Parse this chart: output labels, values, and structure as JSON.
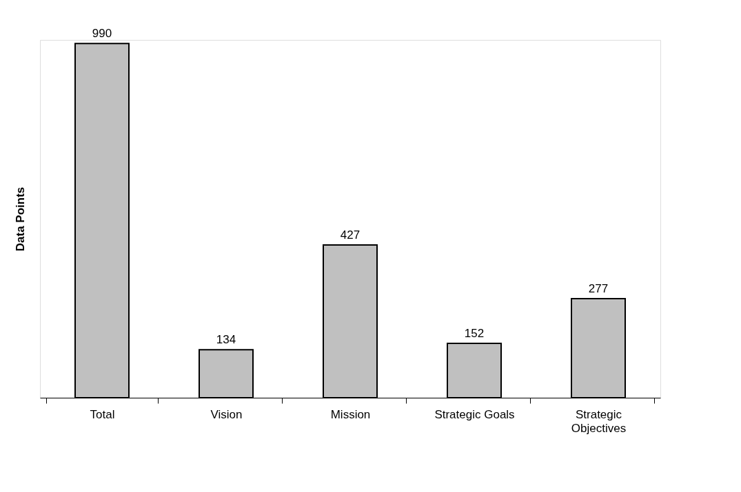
{
  "chart_data": {
    "type": "bar",
    "ylabel": "Data Points",
    "categories": [
      "Total",
      "Vision",
      "Mission",
      "Strategic Goals",
      "Strategic Objectives"
    ],
    "values": [
      990,
      134,
      427,
      152,
      277
    ],
    "color": "#c0c0c0",
    "data_labels": true
  }
}
